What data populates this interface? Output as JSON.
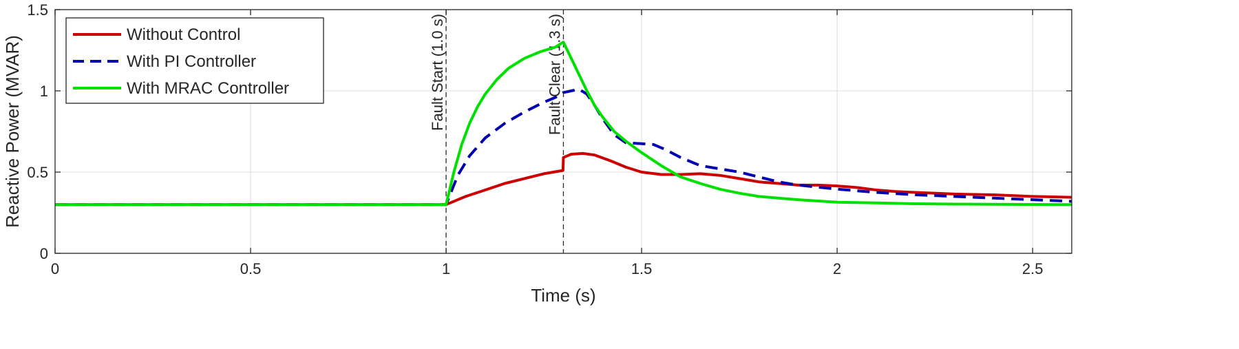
{
  "chart_data": {
    "type": "line",
    "title": "",
    "xlabel": "Time (s)",
    "ylabel": "Reactive Power (MVAR)",
    "xlim": [
      0,
      2.6
    ],
    "ylim": [
      0,
      1.5
    ],
    "xticks": [
      0,
      0.5,
      1,
      1.5,
      2,
      2.5
    ],
    "yticks": [
      0,
      0.5,
      1,
      1.5
    ],
    "xtick_labels": [
      "0",
      "0.5",
      "1",
      "1.5",
      "2",
      "2.5"
    ],
    "ytick_labels": [
      "0",
      "0.5",
      "1",
      "1.5"
    ],
    "grid": true,
    "legend_position": "top-left",
    "annotations": [
      {
        "x": 1.0,
        "label": "Fault Start (1.0 s)"
      },
      {
        "x": 1.3,
        "label": "Fault Clear (1.3 s)"
      }
    ],
    "series": [
      {
        "name": "Without Control",
        "color": "#cc0000",
        "style": "solid",
        "x": [
          0,
          1.0,
          1.05,
          1.1,
          1.15,
          1.2,
          1.25,
          1.299,
          1.3,
          1.32,
          1.35,
          1.38,
          1.42,
          1.46,
          1.5,
          1.55,
          1.6,
          1.65,
          1.7,
          1.75,
          1.8,
          1.85,
          1.9,
          1.95,
          2.0,
          2.05,
          2.1,
          2.15,
          2.2,
          2.3,
          2.4,
          2.5,
          2.6
        ],
        "y": [
          0.3,
          0.3,
          0.35,
          0.39,
          0.43,
          0.46,
          0.49,
          0.51,
          0.59,
          0.61,
          0.615,
          0.605,
          0.57,
          0.53,
          0.5,
          0.485,
          0.485,
          0.49,
          0.48,
          0.46,
          0.44,
          0.43,
          0.42,
          0.42,
          0.415,
          0.405,
          0.39,
          0.38,
          0.375,
          0.365,
          0.36,
          0.35,
          0.345
        ]
      },
      {
        "name": "With PI Controller",
        "color": "#0000b0",
        "style": "dashed",
        "x": [
          0,
          1.0,
          1.03,
          1.06,
          1.1,
          1.15,
          1.2,
          1.25,
          1.28,
          1.3,
          1.32,
          1.34,
          1.36,
          1.38,
          1.4,
          1.43,
          1.46,
          1.5,
          1.53,
          1.56,
          1.6,
          1.65,
          1.7,
          1.75,
          1.8,
          1.85,
          1.9,
          2.0,
          2.1,
          2.2,
          2.3,
          2.4,
          2.5,
          2.6
        ],
        "y": [
          0.3,
          0.3,
          0.48,
          0.6,
          0.71,
          0.8,
          0.87,
          0.93,
          0.96,
          0.99,
          1.0,
          1.01,
          0.98,
          0.91,
          0.83,
          0.73,
          0.68,
          0.675,
          0.67,
          0.64,
          0.59,
          0.54,
          0.52,
          0.5,
          0.47,
          0.44,
          0.42,
          0.395,
          0.375,
          0.36,
          0.35,
          0.34,
          0.33,
          0.32
        ]
      },
      {
        "name": "With MRAC Controller",
        "color": "#00e000",
        "style": "solid",
        "x": [
          0,
          1.0,
          1.02,
          1.04,
          1.06,
          1.08,
          1.1,
          1.13,
          1.16,
          1.2,
          1.24,
          1.28,
          1.3,
          1.32,
          1.34,
          1.36,
          1.38,
          1.4,
          1.43,
          1.46,
          1.5,
          1.55,
          1.6,
          1.65,
          1.7,
          1.75,
          1.8,
          1.9,
          2.0,
          2.1,
          2.2,
          2.3,
          2.4,
          2.5,
          2.6
        ],
        "y": [
          0.3,
          0.3,
          0.5,
          0.67,
          0.8,
          0.9,
          0.98,
          1.07,
          1.14,
          1.2,
          1.24,
          1.27,
          1.3,
          1.2,
          1.1,
          1.0,
          0.91,
          0.84,
          0.75,
          0.69,
          0.62,
          0.54,
          0.47,
          0.43,
          0.395,
          0.37,
          0.35,
          0.33,
          0.315,
          0.31,
          0.305,
          0.303,
          0.302,
          0.301,
          0.3
        ]
      }
    ]
  }
}
